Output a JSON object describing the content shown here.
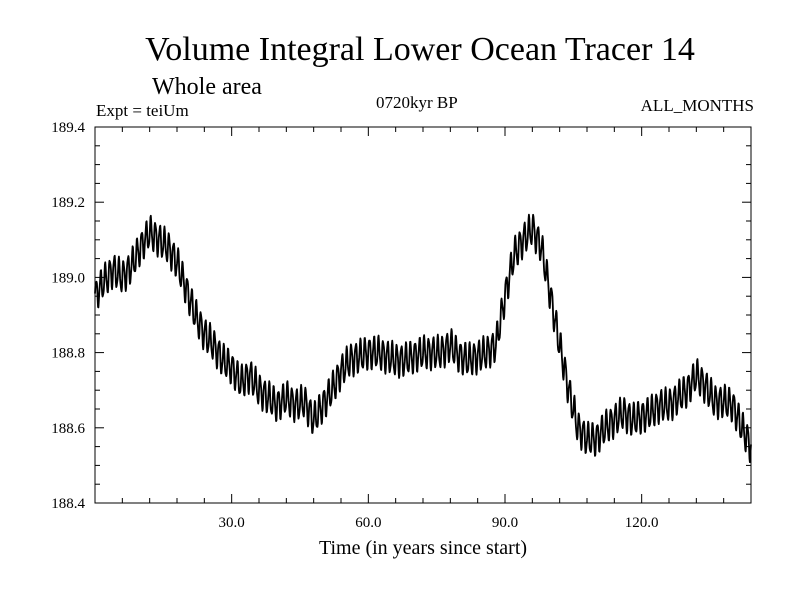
{
  "chart_data": {
    "type": "line",
    "title": "Volume Integral Lower Ocean Tracer 14",
    "subtitle": "Whole area",
    "experiment": "Expt = teiUm",
    "period": "0720kyr BP",
    "months": "ALL_MONTHS",
    "xlabel": "Time (in years since start)",
    "ylabel": "",
    "xlim": [
      0,
      144
    ],
    "ylim": [
      188.4,
      189.4
    ],
    "xticks": [
      30,
      60,
      90,
      120
    ],
    "xtick_labels": [
      "30.0",
      "60.0",
      "90.0",
      "120.0"
    ],
    "yticks": [
      188.4,
      188.6,
      188.8,
      189.0,
      189.2,
      189.4
    ],
    "ytick_labels": [
      "188.4",
      "188.6",
      "188.8",
      "189.0",
      "189.2",
      "189.4"
    ],
    "grid": false,
    "seasonal_amplitude": 0.04,
    "series": [
      {
        "name": "Lower Ocean Tracer 14",
        "trend_x": [
          0,
          2,
          4,
          6,
          8,
          10,
          12,
          14,
          16,
          18,
          20,
          22,
          24,
          26,
          28,
          30,
          32,
          34,
          36,
          38,
          40,
          42,
          44,
          46,
          48,
          50,
          52,
          54,
          56,
          58,
          60,
          62,
          64,
          66,
          68,
          70,
          72,
          74,
          76,
          78,
          80,
          82,
          84,
          86,
          88,
          90,
          92,
          94,
          96,
          98,
          100,
          102,
          104,
          106,
          108,
          110,
          112,
          114,
          116,
          118,
          120,
          122,
          124,
          126,
          128,
          130,
          132,
          134,
          136,
          138,
          140,
          142,
          144
        ],
        "trend_values": [
          188.95,
          188.99,
          189.02,
          189.0,
          189.03,
          189.08,
          189.12,
          189.1,
          189.08,
          189.04,
          188.97,
          188.9,
          188.85,
          188.82,
          188.78,
          188.76,
          188.72,
          188.74,
          188.7,
          188.68,
          188.66,
          188.68,
          188.66,
          188.67,
          188.62,
          188.66,
          188.7,
          188.75,
          188.78,
          188.79,
          188.8,
          188.8,
          188.79,
          188.78,
          188.78,
          188.79,
          188.8,
          188.8,
          188.8,
          188.82,
          188.79,
          188.78,
          188.79,
          188.8,
          188.82,
          188.95,
          189.06,
          189.1,
          189.13,
          189.08,
          188.95,
          188.82,
          188.7,
          188.6,
          188.57,
          188.57,
          188.6,
          188.62,
          188.64,
          188.62,
          188.63,
          188.64,
          188.66,
          188.66,
          188.68,
          188.7,
          188.74,
          188.71,
          188.67,
          188.67,
          188.66,
          188.6,
          188.55
        ]
      }
    ]
  }
}
